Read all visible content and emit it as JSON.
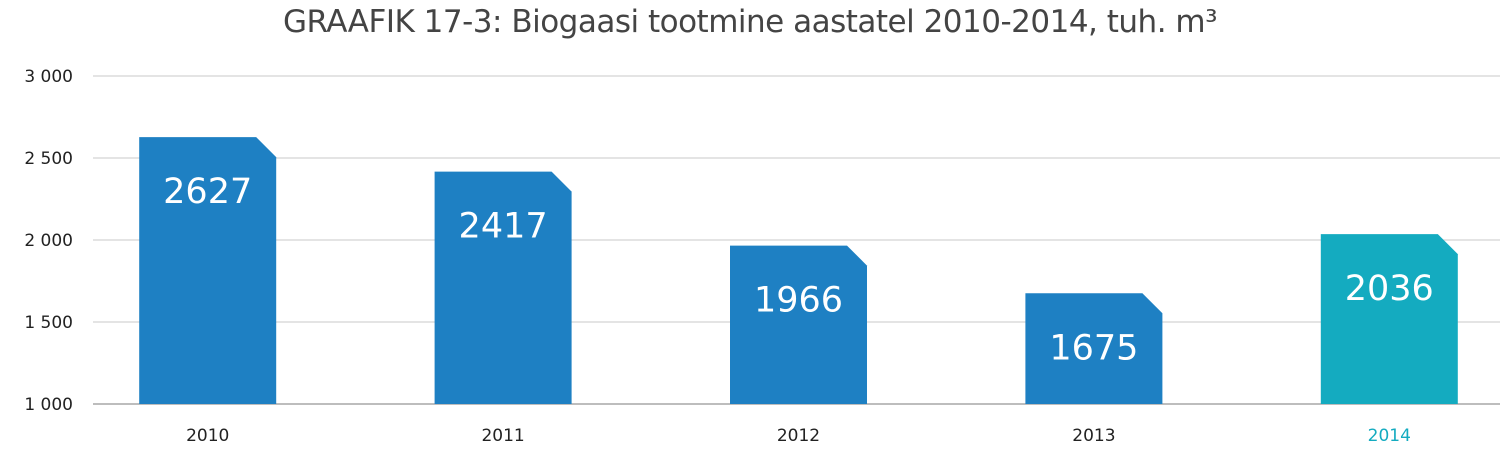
{
  "chart_data": {
    "type": "bar",
    "title": "GRAAFIK 17-3: Biogaasi tootmine aastatel 2010-2014, tuh. m³",
    "categories": [
      "2010",
      "2011",
      "2012",
      "2013",
      "2014"
    ],
    "values": [
      2627,
      2417,
      1966,
      1675,
      2036
    ],
    "data_labels": [
      "2627",
      "2417",
      "1966",
      "1675",
      "2036"
    ],
    "ylim": [
      1000,
      3000
    ],
    "yticks": [
      1000,
      1500,
      2000,
      2500,
      3000
    ],
    "ytick_labels": [
      "1 000",
      "1 500",
      "2 000",
      "2 500",
      "3 000"
    ],
    "grid": true,
    "colors": {
      "bar": "#1e80c3",
      "highlight_bar": "#14abc0",
      "highlight_category": "2014",
      "grid": "#d4d4d4",
      "axis": "#bdbdbd",
      "tick_text": "#222222"
    }
  }
}
